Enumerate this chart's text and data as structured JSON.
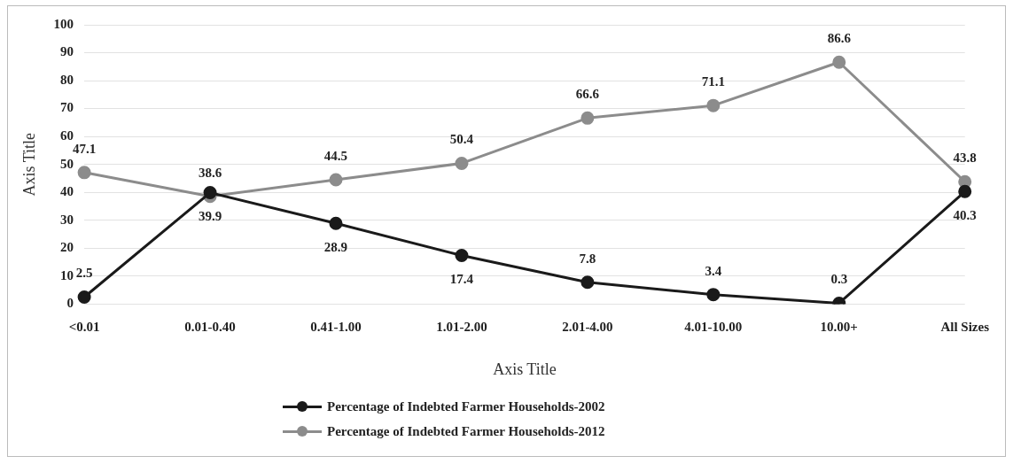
{
  "chart_data": {
    "type": "line",
    "xlabel": "Axis Title",
    "ylabel": "Axis Title",
    "categories": [
      "<0.01",
      "0.01-0.40",
      "0.41-1.00",
      "1.01-2.00",
      "2.01-4.00",
      "4.01-10.00",
      "10.00+",
      "All Sizes"
    ],
    "series": [
      {
        "name": "Percentage of Indebted Farmer Households-2002",
        "color": "#1a1a1a",
        "values": [
          2.5,
          39.9,
          28.9,
          17.4,
          7.8,
          3.4,
          0.3,
          40.3
        ]
      },
      {
        "name": "Percentage of Indebted Farmer Households-2012",
        "color": "#8c8c8c",
        "values": [
          47.1,
          38.6,
          44.5,
          50.4,
          66.6,
          71.1,
          86.6,
          43.8
        ]
      }
    ],
    "ylim": [
      0,
      100
    ],
    "yticks": [
      0,
      10,
      20,
      30,
      40,
      50,
      60,
      70,
      80,
      90,
      100
    ],
    "grid": "y",
    "legend": "bottom",
    "marker": "circle",
    "line_style": "solid",
    "data_labels": true
  }
}
